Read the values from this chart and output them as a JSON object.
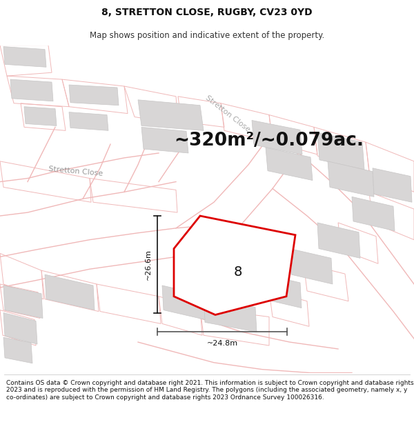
{
  "title": "8, STRETTON CLOSE, RUGBY, CV23 0YD",
  "subtitle": "Map shows position and indicative extent of the property.",
  "area_text": "~320m²/~0.079ac.",
  "dim_vertical": "~26.6m",
  "dim_horizontal": "~24.8m",
  "property_number": "8",
  "road_label_left": "Stretton Close",
  "road_label_diag": "Stretton Close",
  "footer_text": "Contains OS data © Crown copyright and database right 2021. This information is subject to Crown copyright and database rights 2023 and is reproduced with the permission of HM Land Registry. The polygons (including the associated geometry, namely x, y co-ordinates) are subject to Crown copyright and database rights 2023 Ordnance Survey 100026316.",
  "bg_color": "#ffffff",
  "road_color": "#f0b8b8",
  "building_fill": "#d8d6d6",
  "building_edge": "#c8c6c6",
  "property_fill": "#ffffff",
  "property_edge": "#dd0000",
  "measure_color": "#111111",
  "horiz_measure_color": "#555555",
  "title_fontsize": 10,
  "subtitle_fontsize": 8.5,
  "area_fontsize": 19,
  "dim_fontsize": 8,
  "number_fontsize": 14,
  "road_label_fontsize": 8,
  "footer_fontsize": 6.5
}
